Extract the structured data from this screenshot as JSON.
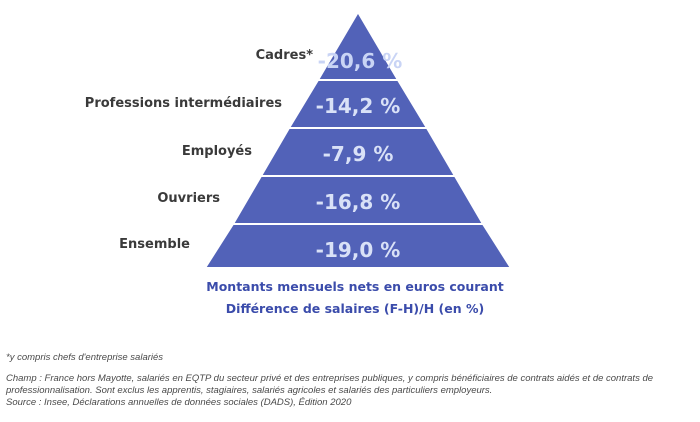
{
  "levels": [
    {
      "label": "Cadres*",
      "value": "-20,6 %"
    },
    {
      "label": "Professions intermédiaires",
      "value": "-14,2 %"
    },
    {
      "label": "Employés",
      "value": "-7,9 %"
    },
    {
      "label": "Ouvriers",
      "value": "-16,8 %"
    },
    {
      "label": "Ensemble",
      "value": "-19,0 %"
    }
  ],
  "subtitle_line1": "Montants mensuels nets en euros courant",
  "subtitle_line2": "Différence de salaires (F-H)/H (en %)",
  "footnote": "*y compris chefs d'entreprise salariés",
  "champ": "Champ : France hors Mayotte, salariés en EQTP du secteur privé et des entreprises publiques, y compris bénéficiaires de contrats aidés et de contrats de professionnalisation. Sont exclus les apprentis, stagiaires, salariés agricoles et salariés des particuliers employeurs.",
  "source": "Source : Insee, Déclarations annuelles de données sociales (DADS), Édition 2020",
  "colors": {
    "pyramid_fill": "#5262b8",
    "value_text": "#d9e1f7",
    "subtitle_text": "#3b4cab"
  }
}
